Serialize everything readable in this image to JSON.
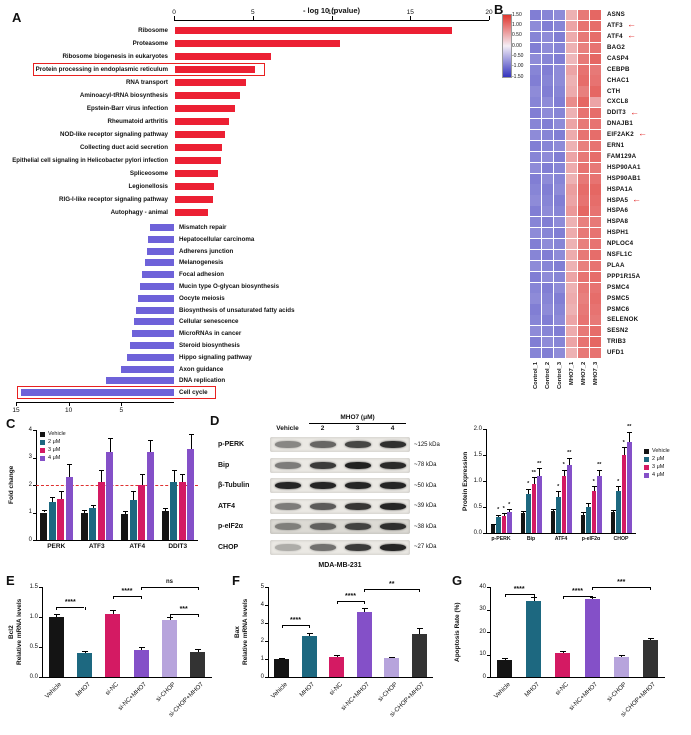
{
  "figure": {
    "panel_labels": {
      "A": "A",
      "B": "B",
      "C": "C",
      "D": "D",
      "E": "E",
      "F": "F",
      "G": "G"
    }
  },
  "chart_data": [
    {
      "id": "panelA",
      "type": "bar",
      "orientation": "diverging-horizontal",
      "title": "- log 10 (pvalue)",
      "top_axis_ticks": [
        0,
        5,
        10,
        15,
        20
      ],
      "bottom_axis_ticks": [
        15,
        10,
        5
      ],
      "up_color": "#ec2033",
      "down_color": "#6e62d9",
      "highlight_color": "#e82020",
      "up": {
        "categories": [
          "Ribosome",
          "Proteasome",
          "Ribosome biogenesis in eukaryotes",
          "Protein processing in endoplasmic reticulum",
          "RNA transport",
          "Aminoacyl-tRNA biosynthesis",
          "Epstein-Barr virus infection",
          "Rheumatoid arthritis",
          "NOD-like receptor signaling pathway",
          "Collecting duct acid secretion",
          "Epithelial cell signaling in Helicobacter pylori infection",
          "Spliceosome",
          "Legionellosis",
          "RIG-I-like receptor signaling pathway",
          "Autophagy - animal"
        ],
        "values": [
          17.6,
          10.5,
          6.1,
          5.1,
          4.5,
          4.1,
          3.8,
          3.4,
          3.2,
          3.0,
          2.9,
          2.7,
          2.5,
          2.4,
          2.1
        ],
        "highlighted": "Protein processing in endoplasmic reticulum"
      },
      "down": {
        "categories": [
          "Mismatch repair",
          "Hepatocellular carcinoma",
          "Adherens junction",
          "Melanogenesis",
          "Focal adhesion",
          "Mucin type O-glycan biosynthesis",
          "Oocyte meiosis",
          "Biosynthesis of unsaturated fatty acids",
          "Cellular senescence",
          "MicroRNAs in cancer",
          "Steroid biosynthesis",
          "Hippo signaling pathway",
          "Axon guidance",
          "DNA replication",
          "Cell cycle"
        ],
        "values": [
          2.3,
          2.5,
          2.6,
          2.8,
          3.0,
          3.2,
          3.4,
          3.6,
          3.8,
          4.0,
          4.2,
          4.5,
          5.0,
          6.5,
          14.5
        ],
        "highlighted": "Cell cycle"
      }
    },
    {
      "id": "panelB",
      "type": "heatmap",
      "columns": [
        "Control_1",
        "Control_2",
        "Control_3",
        "MHO7_1",
        "MHO7_2",
        "MHO7_3"
      ],
      "rows": [
        "ASNS",
        "ATF3",
        "ATF4",
        "BAG2",
        "CASP4",
        "CEBPB",
        "CHAC1",
        "CTH",
        "CXCL8",
        "DDIT3",
        "DNAJB1",
        "EIF2AK2",
        "ERN1",
        "FAM129A",
        "HSP90AA1",
        "HSP90AB1",
        "HSPA1A",
        "HSPA5",
        "HSPA6",
        "HSPA8",
        "HSPH1",
        "NPLOC4",
        "NSFL1C",
        "PLAA",
        "PPP1R15A",
        "PSMC4",
        "PSMC5",
        "PSMC6",
        "SELENOK",
        "SESN2",
        "TRIB3",
        "UFD1"
      ],
      "arrow_rows": [
        "ATF3",
        "ATF4",
        "DDIT3",
        "EIF2AK2",
        "HSPA5"
      ],
      "legend_ticks": [
        "1.50",
        "1.00",
        "0.50",
        "0.00",
        "-0.50",
        "-1.00",
        "-1.50"
      ],
      "colormap": {
        "min": -1.5,
        "max": 1.5,
        "neg_color": "#3434be",
        "mid_color": "#f4eef6",
        "pos_color": "#e0362e"
      },
      "values": [
        [
          -0.9,
          -0.85,
          -0.8,
          0.5,
          0.95,
          1.1
        ],
        [
          -0.8,
          -0.9,
          -0.85,
          0.6,
          1.0,
          1.05
        ],
        [
          -0.85,
          -0.8,
          -0.9,
          0.55,
          0.95,
          1.05
        ],
        [
          -0.9,
          -0.8,
          -0.85,
          0.5,
          0.9,
          1.0
        ],
        [
          -0.8,
          -0.85,
          -0.9,
          0.45,
          0.95,
          1.1
        ],
        [
          -0.85,
          -0.9,
          -0.8,
          0.6,
          1.0,
          0.95
        ],
        [
          -0.9,
          -0.85,
          -0.8,
          0.5,
          1.05,
          1.0
        ],
        [
          -0.8,
          -0.9,
          -0.85,
          0.55,
          0.9,
          1.1
        ],
        [
          -0.85,
          -0.8,
          -0.9,
          0.8,
          1.1,
          0.6
        ],
        [
          -0.9,
          -0.8,
          -0.85,
          0.5,
          1.0,
          1.05
        ],
        [
          -0.85,
          -0.9,
          -0.8,
          0.6,
          0.95,
          1.0
        ],
        [
          -0.8,
          -0.85,
          -0.9,
          0.55,
          1.0,
          1.05
        ],
        [
          -0.9,
          -0.85,
          -0.8,
          0.5,
          0.9,
          1.0
        ],
        [
          -0.85,
          -0.8,
          -0.9,
          0.6,
          0.95,
          1.05
        ],
        [
          -0.8,
          -0.9,
          -0.85,
          0.55,
          1.0,
          0.95
        ],
        [
          -0.9,
          -0.8,
          -0.85,
          0.5,
          0.95,
          1.0
        ],
        [
          -0.85,
          -0.9,
          -0.8,
          0.65,
          1.05,
          1.1
        ],
        [
          -0.8,
          -0.85,
          -0.9,
          0.6,
          1.0,
          1.05
        ],
        [
          -0.9,
          -0.8,
          -0.85,
          0.7,
          1.1,
          1.0
        ],
        [
          -0.85,
          -0.9,
          -0.8,
          0.5,
          0.9,
          0.95
        ],
        [
          -0.8,
          -0.85,
          -0.9,
          0.55,
          0.95,
          1.0
        ],
        [
          -0.9,
          -0.8,
          -0.85,
          0.5,
          0.9,
          1.0
        ],
        [
          -0.85,
          -0.9,
          -0.8,
          0.55,
          0.95,
          1.05
        ],
        [
          -0.8,
          -0.85,
          -0.9,
          0.5,
          0.9,
          1.0
        ],
        [
          -0.9,
          -0.8,
          -0.85,
          0.6,
          1.0,
          1.05
        ],
        [
          -0.85,
          -0.9,
          -0.8,
          0.5,
          0.95,
          1.0
        ],
        [
          -0.8,
          -0.85,
          -0.9,
          0.55,
          0.9,
          1.05
        ],
        [
          -0.9,
          -0.8,
          -0.85,
          0.5,
          0.95,
          1.0
        ],
        [
          -0.85,
          -0.9,
          -0.8,
          0.6,
          1.0,
          0.95
        ],
        [
          -0.8,
          -0.85,
          -0.9,
          0.55,
          0.95,
          1.05
        ],
        [
          -0.9,
          -0.8,
          -0.85,
          0.6,
          1.0,
          1.1
        ],
        [
          -0.85,
          -0.9,
          -0.8,
          0.5,
          0.95,
          1.0
        ]
      ]
    },
    {
      "id": "panelC",
      "type": "bar",
      "ylabel": "Fold change",
      "ylim": [
        0,
        4
      ],
      "yticks": [
        "0",
        "1",
        "2",
        "3",
        "4"
      ],
      "categories": [
        "PERK",
        "ATF3",
        "ATF4",
        "DDIT3"
      ],
      "refline": 2,
      "refline_color": "#e03030",
      "series": [
        {
          "name": "Vehicle",
          "color": "#141414",
          "values": [
            1.0,
            1.0,
            0.95,
            1.05
          ],
          "errors": [
            0.08,
            0.1,
            0.12,
            0.1
          ]
        },
        {
          "name": "2 μM",
          "color": "#1d6880",
          "values": [
            1.4,
            1.15,
            1.45,
            2.1
          ],
          "errors": [
            0.15,
            0.12,
            0.35,
            0.45
          ]
        },
        {
          "name": "3 μM",
          "color": "#d41a63",
          "values": [
            1.5,
            2.1,
            2.0,
            2.1
          ],
          "errors": [
            0.3,
            0.45,
            0.4,
            0.3
          ]
        },
        {
          "name": "4 μM",
          "color": "#8450c8",
          "values": [
            2.3,
            3.2,
            3.2,
            3.3
          ],
          "errors": [
            0.45,
            0.5,
            0.45,
            0.55
          ]
        }
      ]
    },
    {
      "id": "panelD_expression",
      "type": "bar",
      "ylabel": "Protein Expression",
      "ylim": [
        0,
        2
      ],
      "yticks": [
        "0.0",
        "0.5",
        "1.0",
        "1.5",
        "2.0"
      ],
      "categories": [
        "p-PERK",
        "Bip",
        "ATF4",
        "p-eIF2α",
        "CHOP"
      ],
      "series": [
        {
          "name": "Vehicle",
          "color": "#141414",
          "values": [
            0.15,
            0.38,
            0.42,
            0.35,
            0.4
          ],
          "errors": [
            0.03,
            0.05,
            0.05,
            0.05,
            0.05
          ]
        },
        {
          "name": "2 μM",
          "color": "#1d6880",
          "values": [
            0.3,
            0.75,
            0.7,
            0.5,
            0.8
          ],
          "errors": [
            0.05,
            0.1,
            0.1,
            0.08,
            0.1
          ]
        },
        {
          "name": "3 μM",
          "color": "#d41a63",
          "values": [
            0.33,
            0.95,
            1.1,
            0.8,
            1.5
          ],
          "errors": [
            0.05,
            0.12,
            0.12,
            0.1,
            0.15
          ]
        },
        {
          "name": "4 μM",
          "color": "#8450c8",
          "values": [
            0.4,
            1.1,
            1.3,
            1.1,
            1.75
          ],
          "errors": [
            0.06,
            0.15,
            0.15,
            0.12,
            0.2
          ]
        }
      ],
      "sig": [
        [
          "",
          "*",
          "*",
          "*"
        ],
        [
          "",
          "*",
          "**",
          "**"
        ],
        [
          "",
          "*",
          "*",
          "**"
        ],
        [
          "",
          "",
          "*",
          "**"
        ],
        [
          "",
          "*",
          "*",
          "**"
        ]
      ]
    },
    {
      "id": "panelE",
      "type": "bar",
      "ylabel": "Bcl2\nRelative mRNA levels",
      "ylim": [
        0,
        1.5
      ],
      "yticks": [
        "0.0",
        "0.5",
        "1.0",
        "1.5"
      ],
      "categories": [
        "Vehicle",
        "MHO7",
        "si-NC",
        "si-NC+MHO7",
        "si-CHOP",
        "si-CHOP+MHO7"
      ],
      "values": [
        1.0,
        0.4,
        1.05,
        0.45,
        0.95,
        0.42
      ],
      "errors": [
        0.05,
        0.04,
        0.07,
        0.05,
        0.05,
        0.04
      ],
      "colors": [
        "#141414",
        "#1d6880",
        "#d41a63",
        "#8450c8",
        "#b7a4dc",
        "#333333"
      ],
      "brackets": [
        {
          "from": 0,
          "to": 1,
          "label": "****",
          "y": 0.22
        },
        {
          "from": 2,
          "to": 3,
          "label": "****",
          "y": 0.1
        },
        {
          "from": 3,
          "to": 5,
          "label": "ns",
          "y": 0.0
        },
        {
          "from": 4,
          "to": 5,
          "label": "***",
          "y": 0.3
        }
      ]
    },
    {
      "id": "panelF",
      "type": "bar",
      "ylabel": "Bax\nRelative mRNA levels",
      "ylim": [
        0,
        5
      ],
      "yticks": [
        "0",
        "1",
        "2",
        "3",
        "4",
        "5"
      ],
      "categories": [
        "Vehicle",
        "MHO7",
        "si-NC",
        "si-NC+MHO7",
        "si-CHOP",
        "si-CHOP+MHO7"
      ],
      "values": [
        1.0,
        2.3,
        1.1,
        3.6,
        1.05,
        2.4
      ],
      "errors": [
        0.08,
        0.15,
        0.1,
        0.25,
        0.08,
        0.3
      ],
      "colors": [
        "#141414",
        "#1d6880",
        "#d41a63",
        "#8450c8",
        "#b7a4dc",
        "#333333"
      ],
      "brackets": [
        {
          "from": 0,
          "to": 1,
          "label": "****",
          "y": 0.42
        },
        {
          "from": 2,
          "to": 3,
          "label": "****",
          "y": 0.16
        },
        {
          "from": 3,
          "to": 5,
          "label": "**",
          "y": 0.02
        }
      ]
    },
    {
      "id": "panelG",
      "type": "bar",
      "ylabel": "Apoptosis Rate (%)",
      "ylim": [
        0,
        40
      ],
      "yticks": [
        "0",
        "10",
        "20",
        "30",
        "40"
      ],
      "categories": [
        "Vehicle",
        "MHO7",
        "si-NC",
        "si-NC+MHO7",
        "si-CHOP",
        "si-CHOP+MHO7"
      ],
      "values": [
        7.5,
        34,
        10.5,
        34.5,
        9,
        16.5
      ],
      "errors": [
        0.8,
        1.5,
        1.0,
        1.2,
        0.8,
        1.0
      ],
      "colors": [
        "#141414",
        "#1d6880",
        "#d41a63",
        "#8450c8",
        "#b7a4dc",
        "#333333"
      ],
      "brackets": [
        {
          "from": 0,
          "to": 1,
          "label": "****",
          "y": 0.08
        },
        {
          "from": 2,
          "to": 3,
          "label": "****",
          "y": 0.1
        },
        {
          "from": 3,
          "to": 5,
          "label": "***",
          "y": 0.0
        }
      ]
    }
  ],
  "blots": {
    "header_treatment": "MHO7 (μM)",
    "col_labels": [
      "Vehicle",
      "2",
      "3",
      "4"
    ],
    "rows": [
      {
        "label": "p-PERK",
        "kda": "~125 kDa",
        "intensities": [
          0.45,
          0.6,
          0.75,
          0.85
        ]
      },
      {
        "label": "Bip",
        "kda": "~78 kDa",
        "intensities": [
          0.5,
          0.8,
          0.92,
          0.88
        ]
      },
      {
        "label": "β-Tubulin",
        "kda": "~50 kDa",
        "intensities": [
          0.9,
          0.9,
          0.9,
          0.9
        ]
      },
      {
        "label": "ATF4",
        "kda": "~39 kDa",
        "intensities": [
          0.5,
          0.65,
          0.82,
          0.9
        ]
      },
      {
        "label": "p-eIF2α",
        "kda": "~38 kDa",
        "intensities": [
          0.45,
          0.6,
          0.75,
          0.85
        ],
        "bg": "#dcdad4"
      },
      {
        "label": "CHOP",
        "kda": "~27 kDa",
        "intensities": [
          0.28,
          0.55,
          0.8,
          0.9
        ]
      }
    ],
    "cell_line": "MDA-MB-231"
  }
}
